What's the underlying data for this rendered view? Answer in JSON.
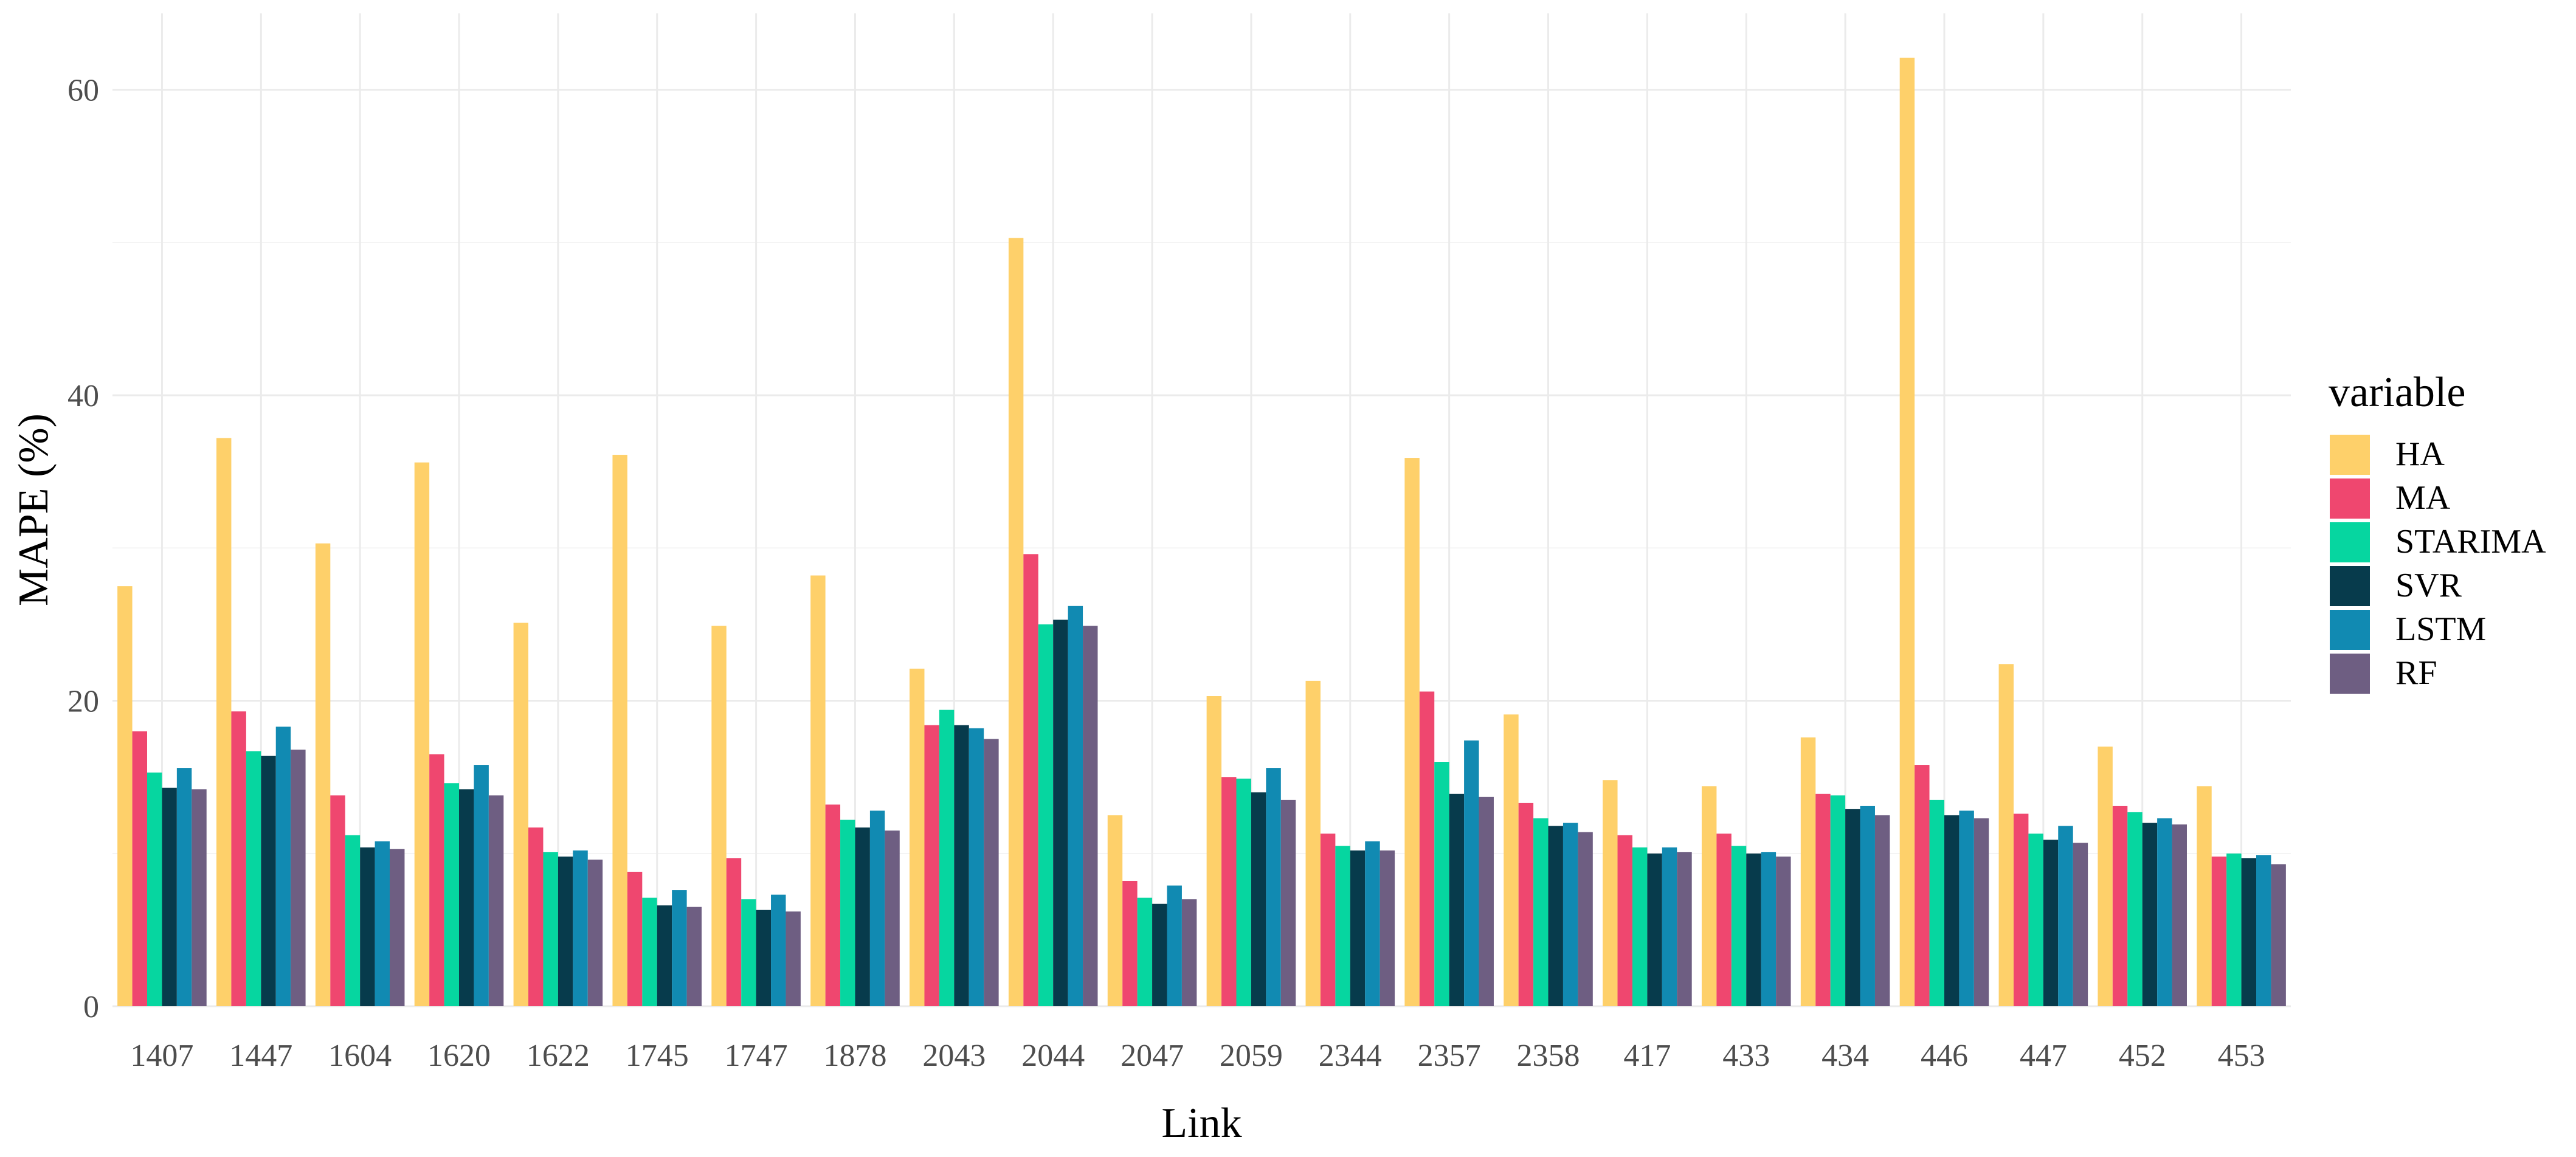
{
  "chart_data": {
    "type": "bar",
    "xlabel": "Link",
    "ylabel": "MAPE (%)",
    "ylim": [
      0,
      65
    ],
    "yticks": [
      0,
      20,
      40,
      60
    ],
    "grid": true,
    "legend": {
      "title": "variable",
      "placement": "right"
    },
    "categories": [
      "1407",
      "1447",
      "1604",
      "1620",
      "1622",
      "1745",
      "1747",
      "1878",
      "2043",
      "2044",
      "2047",
      "2059",
      "2344",
      "2357",
      "2358",
      "417",
      "433",
      "434",
      "446",
      "447",
      "452",
      "453"
    ],
    "series": [
      {
        "name": "HA",
        "color": "#FED06A",
        "values": [
          27.5,
          37.2,
          30.3,
          35.6,
          25.1,
          36.1,
          24.9,
          28.2,
          22.1,
          50.3,
          12.5,
          20.3,
          21.3,
          35.9,
          19.1,
          14.8,
          14.4,
          17.6,
          62.1,
          22.4,
          17.0,
          14.4
        ]
      },
      {
        "name": "MA",
        "color": "#EF476F",
        "values": [
          18.0,
          19.3,
          13.8,
          16.5,
          11.7,
          8.8,
          9.7,
          13.2,
          18.4,
          29.6,
          8.2,
          15.0,
          11.3,
          20.6,
          13.3,
          11.2,
          11.3,
          13.9,
          15.8,
          12.6,
          13.1,
          9.8
        ]
      },
      {
        "name": "STARIMA",
        "color": "#06D6A0",
        "values": [
          15.3,
          16.7,
          11.2,
          14.6,
          10.1,
          7.1,
          7.0,
          12.2,
          19.4,
          25.0,
          7.1,
          14.9,
          10.5,
          16.0,
          12.3,
          10.4,
          10.5,
          13.8,
          13.5,
          11.3,
          12.7,
          10.0
        ]
      },
      {
        "name": "SVR",
        "color": "#073B4C",
        "values": [
          14.3,
          16.4,
          10.4,
          14.2,
          9.8,
          6.6,
          6.3,
          11.7,
          18.4,
          25.3,
          6.7,
          14.0,
          10.2,
          13.9,
          11.8,
          10.0,
          10.0,
          12.9,
          12.5,
          10.9,
          12.0,
          9.7
        ]
      },
      {
        "name": "LSTM",
        "color": "#118AB2",
        "values": [
          15.6,
          18.3,
          10.8,
          15.8,
          10.2,
          7.6,
          7.3,
          12.8,
          18.2,
          26.2,
          7.9,
          15.6,
          10.8,
          17.4,
          12.0,
          10.4,
          10.1,
          13.1,
          12.8,
          11.8,
          12.3,
          9.9
        ]
      },
      {
        "name": "RF",
        "color": "#6E5E82",
        "values": [
          14.2,
          16.8,
          10.3,
          13.8,
          9.6,
          6.5,
          6.2,
          11.5,
          17.5,
          24.9,
          7.0,
          13.5,
          10.2,
          13.7,
          11.4,
          10.1,
          9.8,
          12.5,
          12.3,
          10.7,
          11.9,
          9.3
        ]
      }
    ]
  }
}
